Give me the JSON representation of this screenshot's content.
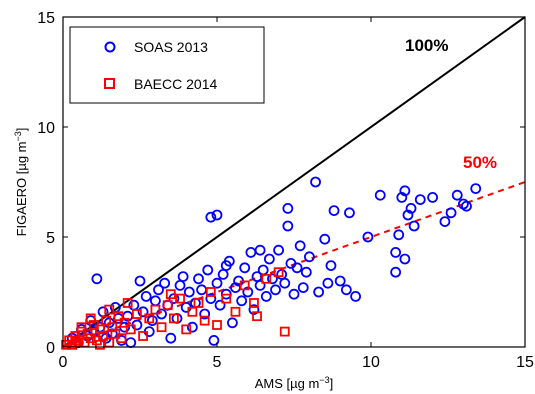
{
  "chart_data": {
    "type": "scatter",
    "title": "",
    "xlabel_main": "AMS [µg m",
    "xlabel_sup": "−3",
    "xlabel_end": "]",
    "ylabel_main": "FIGAERO [µg m",
    "ylabel_sup": "−3",
    "ylabel_end": "]",
    "xlim": [
      0,
      15
    ],
    "ylim": [
      0,
      15
    ],
    "xticks": [
      "0",
      "5",
      "10",
      "15"
    ],
    "yticks": [
      "0",
      "5",
      "10",
      "15"
    ],
    "legend_position": "top-left",
    "grid": false,
    "series": [
      {
        "name": "SOAS 2013",
        "marker": "circle",
        "color": "#0000ff",
        "points": [
          [
            0.3,
            0.4
          ],
          [
            0.5,
            0.2
          ],
          [
            0.6,
            0.8
          ],
          [
            0.8,
            0.5
          ],
          [
            0.9,
            1.2
          ],
          [
            1.0,
            0.7
          ],
          [
            1.1,
            3.1
          ],
          [
            1.2,
            0.9
          ],
          [
            1.3,
            1.6
          ],
          [
            1.4,
            0.4
          ],
          [
            1.5,
            1.1
          ],
          [
            1.6,
            0.6
          ],
          [
            1.7,
            1.8
          ],
          [
            1.8,
            1.3
          ],
          [
            1.9,
            0.3
          ],
          [
            2.0,
            0.9
          ],
          [
            2.1,
            1.4
          ],
          [
            2.2,
            0.2
          ],
          [
            2.3,
            1.9
          ],
          [
            2.4,
            1.0
          ],
          [
            2.5,
            3.0
          ],
          [
            2.6,
            1.6
          ],
          [
            2.7,
            2.3
          ],
          [
            2.8,
            0.7
          ],
          [
            2.9,
            1.2
          ],
          [
            3.0,
            2.1
          ],
          [
            3.1,
            2.6
          ],
          [
            3.2,
            1.5
          ],
          [
            3.3,
            2.9
          ],
          [
            3.4,
            1.9
          ],
          [
            3.5,
            0.4
          ],
          [
            3.6,
            2.2
          ],
          [
            3.7,
            1.3
          ],
          [
            3.8,
            2.8
          ],
          [
            3.9,
            3.2
          ],
          [
            4.0,
            1.8
          ],
          [
            4.1,
            2.5
          ],
          [
            4.2,
            0.9
          ],
          [
            4.3,
            2.0
          ],
          [
            4.4,
            3.1
          ],
          [
            4.5,
            2.6
          ],
          [
            4.6,
            1.5
          ],
          [
            4.7,
            3.5
          ],
          [
            4.8,
            2.2
          ],
          [
            4.9,
            0.3
          ],
          [
            5.0,
            2.9
          ],
          [
            5.1,
            1.9
          ],
          [
            5.2,
            3.3
          ],
          [
            5.3,
            2.4
          ],
          [
            5.4,
            3.9
          ],
          [
            5.5,
            1.1
          ],
          [
            5.6,
            2.7
          ],
          [
            5.7,
            3.0
          ],
          [
            5.8,
            2.1
          ],
          [
            5.9,
            3.6
          ],
          [
            6.0,
            2.5
          ],
          [
            6.1,
            4.3
          ],
          [
            6.2,
            1.7
          ],
          [
            6.3,
            3.2
          ],
          [
            6.4,
            2.8
          ],
          [
            6.5,
            3.5
          ],
          [
            6.6,
            2.3
          ],
          [
            6.7,
            4.0
          ],
          [
            6.8,
            3.1
          ],
          [
            6.9,
            2.6
          ],
          [
            7.0,
            4.4
          ],
          [
            7.1,
            3.3
          ],
          [
            7.2,
            2.9
          ],
          [
            7.3,
            5.5
          ],
          [
            7.4,
            3.8
          ],
          [
            7.5,
            2.4
          ],
          [
            7.6,
            3.6
          ],
          [
            7.7,
            4.6
          ],
          [
            7.8,
            2.7
          ],
          [
            7.9,
            3.4
          ],
          [
            8.0,
            4.1
          ],
          [
            8.2,
            7.5
          ],
          [
            8.3,
            2.5
          ],
          [
            8.5,
            4.9
          ],
          [
            8.6,
            2.9
          ],
          [
            8.7,
            3.7
          ],
          [
            8.8,
            6.2
          ],
          [
            9.0,
            3.0
          ],
          [
            9.2,
            2.6
          ],
          [
            9.3,
            6.1
          ],
          [
            9.5,
            2.3
          ],
          [
            9.9,
            5.0
          ],
          [
            10.3,
            6.9
          ],
          [
            10.8,
            3.4
          ],
          [
            10.9,
            5.1
          ],
          [
            11.0,
            6.8
          ],
          [
            11.1,
            7.1
          ],
          [
            11.2,
            6.0
          ],
          [
            11.4,
            5.5
          ],
          [
            11.6,
            6.7
          ],
          [
            12.0,
            6.8
          ],
          [
            12.4,
            5.7
          ],
          [
            12.6,
            6.1
          ],
          [
            13.0,
            6.5
          ],
          [
            13.4,
            7.2
          ],
          [
            4.8,
            5.9
          ],
          [
            5.0,
            6.0
          ],
          [
            5.3,
            3.7
          ],
          [
            6.4,
            4.4
          ],
          [
            7.3,
            6.3
          ],
          [
            10.8,
            4.3
          ],
          [
            11.1,
            4.0
          ],
          [
            11.3,
            6.3
          ],
          [
            12.8,
            6.9
          ],
          [
            13.1,
            6.4
          ]
        ]
      },
      {
        "name": "BAECC 2014",
        "marker": "square",
        "color": "#ff0000",
        "points": [
          [
            0.1,
            0.1
          ],
          [
            0.2,
            0.3
          ],
          [
            0.3,
            0.1
          ],
          [
            0.4,
            0.5
          ],
          [
            0.5,
            0.3
          ],
          [
            0.6,
            0.7
          ],
          [
            0.7,
            0.2
          ],
          [
            0.8,
            0.6
          ],
          [
            0.9,
            0.4
          ],
          [
            1.0,
            1.0
          ],
          [
            1.1,
            0.3
          ],
          [
            1.2,
            0.8
          ],
          [
            1.3,
            0.5
          ],
          [
            1.4,
            1.2
          ],
          [
            1.5,
            0.2
          ],
          [
            1.6,
            0.9
          ],
          [
            1.7,
            0.6
          ],
          [
            1.8,
            1.4
          ],
          [
            1.9,
            0.4
          ],
          [
            2.0,
            1.1
          ],
          [
            2.2,
            0.8
          ],
          [
            2.4,
            1.5
          ],
          [
            2.6,
            0.5
          ],
          [
            2.8,
            1.3
          ],
          [
            3.0,
            1.7
          ],
          [
            3.2,
            0.9
          ],
          [
            3.4,
            1.9
          ],
          [
            3.6,
            1.3
          ],
          [
            3.8,
            2.2
          ],
          [
            4.0,
            0.8
          ],
          [
            4.2,
            1.6
          ],
          [
            4.4,
            2.0
          ],
          [
            4.6,
            1.2
          ],
          [
            4.8,
            2.5
          ],
          [
            5.0,
            1.0
          ],
          [
            5.3,
            2.2
          ],
          [
            5.6,
            1.6
          ],
          [
            5.9,
            2.8
          ],
          [
            6.2,
            2.0
          ],
          [
            6.6,
            3.1
          ],
          [
            7.0,
            3.4
          ],
          [
            7.2,
            0.7
          ],
          [
            6.3,
            1.4
          ],
          [
            0.9,
            1.3
          ],
          [
            1.2,
            0.1
          ],
          [
            2.1,
            2.0
          ],
          [
            1.5,
            1.7
          ],
          [
            0.6,
            0.9
          ],
          [
            0.4,
            0.2
          ],
          [
            3.5,
            2.4
          ]
        ]
      }
    ],
    "reference_lines": [
      {
        "label": "100%",
        "color": "#000000",
        "style": "solid",
        "slope": 1.0
      },
      {
        "label": "50%",
        "color": "#ff0000",
        "style": "dashed",
        "slope": 0.5
      }
    ]
  }
}
